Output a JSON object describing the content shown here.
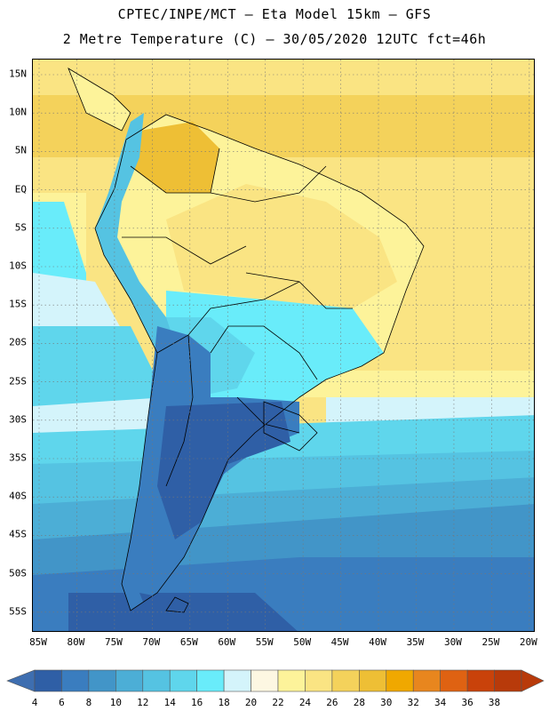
{
  "header": {
    "line1": "CPTEC/INPE/MCT –  Eta Model 15km – GFS",
    "line2": "2 Metre Temperature (C) – 30/05/2020 12UTC fct=46h"
  },
  "map": {
    "lat_labels": [
      "15N",
      "10N",
      "5N",
      "EQ",
      "5S",
      "10S",
      "15S",
      "20S",
      "25S",
      "30S",
      "35S",
      "40S",
      "45S",
      "50S",
      "55S"
    ],
    "lon_labels": [
      "85W",
      "80W",
      "75W",
      "70W",
      "65W",
      "60W",
      "55W",
      "50W",
      "45W",
      "40W",
      "35W",
      "30W",
      "25W",
      "20W"
    ],
    "grid": "dotted"
  },
  "colorbar": {
    "values": [
      "4",
      "6",
      "8",
      "10",
      "12",
      "14",
      "16",
      "18",
      "20",
      "22",
      "24",
      "26",
      "28",
      "30",
      "32",
      "34",
      "36",
      "38"
    ],
    "colors": [
      "#2f5fa6",
      "#3a7dbf",
      "#4295c8",
      "#4caed6",
      "#55c3e2",
      "#5fd6ec",
      "#69ecfa",
      "#d4f4fb",
      "#fdf7e2",
      "#fdf39a",
      "#fae483",
      "#f4d25b",
      "#eebf35",
      "#f0a800",
      "#e8861e",
      "#df6212",
      "#c9420a",
      "#b83a0a"
    ],
    "under_color": "#3e6eb0",
    "over_color": "#b83a0a"
  }
}
